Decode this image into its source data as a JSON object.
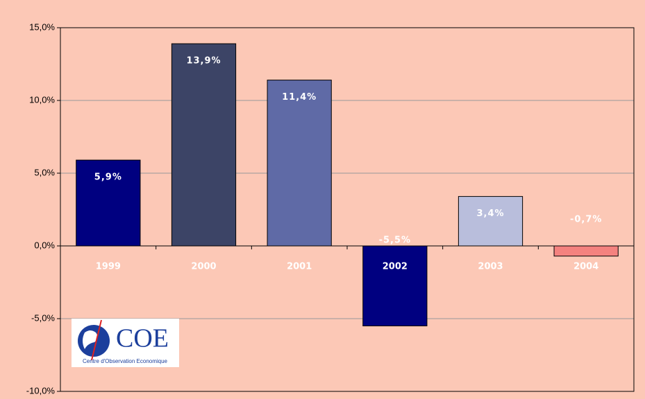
{
  "chart_data": {
    "type": "bar",
    "categories": [
      "1999",
      "2000",
      "2001",
      "2002",
      "2003",
      "2004"
    ],
    "values": [
      5.9,
      13.9,
      11.4,
      -5.5,
      3.4,
      -0.7
    ],
    "value_labels": [
      "5,9%",
      "13,9%",
      "11,4%",
      "-5,5%",
      "3,4%",
      "-0,7%"
    ],
    "colors": [
      "#000080",
      "#3c4466",
      "#5f6aa6",
      "#000080",
      "#b9bedc",
      "#f4827f"
    ],
    "ylim": [
      -10,
      15
    ],
    "yticks": [
      {
        "value": -10,
        "label": "-10,0%"
      },
      {
        "value": -5,
        "label": "-5,0%"
      },
      {
        "value": 0,
        "label": "0,0%"
      },
      {
        "value": 5,
        "label": "5,0%"
      },
      {
        "value": 10,
        "label": "10,0%"
      },
      {
        "value": 15,
        "label": "15,0%"
      }
    ],
    "grid": true
  },
  "logo": {
    "title": "COE",
    "subtitle": "Centre d'Observation Economique"
  }
}
